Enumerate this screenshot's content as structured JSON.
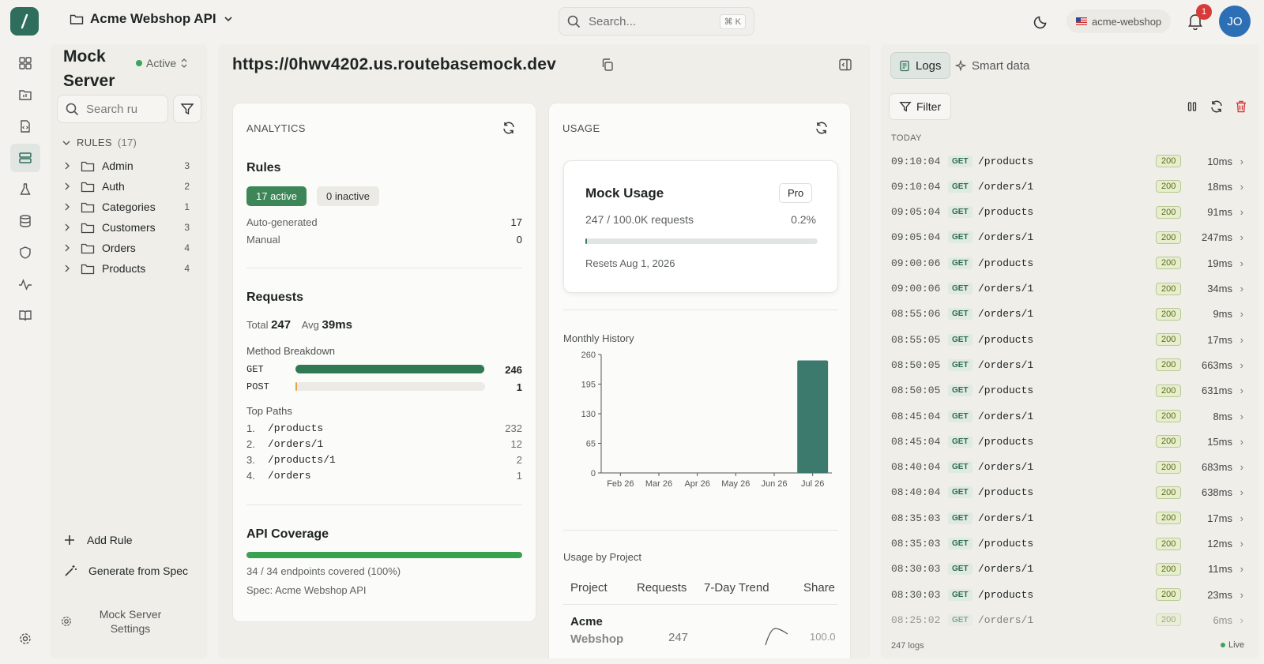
{
  "header": {
    "project": "Acme Webshop API",
    "search_placeholder": "Search...",
    "shortcut": "⌘ K",
    "env": "acme-webshop",
    "notifications": "1",
    "avatar": "JO"
  },
  "sidebar": {
    "title": "Mock Server",
    "status": "Active",
    "search_placeholder": "Search ru",
    "rules_label": "RULES",
    "rules_count": "(17)",
    "folders": [
      {
        "name": "Admin",
        "count": "3"
      },
      {
        "name": "Auth",
        "count": "2"
      },
      {
        "name": "Categories",
        "count": "1"
      },
      {
        "name": "Customers",
        "count": "3"
      },
      {
        "name": "Orders",
        "count": "4"
      },
      {
        "name": "Products",
        "count": "4"
      }
    ],
    "add_rule": "Add Rule",
    "generate": "Generate from Spec",
    "settings": "Mock Server Settings"
  },
  "main": {
    "url": "https://0hwv4202.us.routebasemock.dev",
    "analytics": {
      "heading": "ANALYTICS",
      "rules_title": "Rules",
      "active_badge": "17 active",
      "inactive_badge": "0 inactive",
      "auto_label": "Auto-generated",
      "auto_value": "17",
      "manual_label": "Manual",
      "manual_value": "0",
      "requests_title": "Requests",
      "total_label": "Total",
      "total_value": "247",
      "avg_label": "Avg",
      "avg_value": "39ms",
      "method_title": "Method Breakdown",
      "methods": [
        {
          "name": "GET",
          "value": "246",
          "fraction": 0.996
        },
        {
          "name": "POST",
          "value": "1",
          "fraction": 0.004
        }
      ],
      "top_paths_title": "Top Paths",
      "top_paths": [
        {
          "n": "1.",
          "path": "/products",
          "count": "232"
        },
        {
          "n": "2.",
          "path": "/orders/1",
          "count": "12"
        },
        {
          "n": "3.",
          "path": "/products/1",
          "count": "2"
        },
        {
          "n": "4.",
          "path": "/orders",
          "count": "1"
        }
      ],
      "coverage_title": "API Coverage",
      "coverage_fraction": 1.0,
      "coverage_text": "34 / 34 endpoints covered (100%)",
      "spec_text": "Spec: Acme Webshop API"
    },
    "usage": {
      "heading": "USAGE",
      "mock_usage_title": "Mock Usage",
      "plan": "Pro",
      "requests_text": "247 / 100.0K requests",
      "percent": "0.2%",
      "usage_fraction": 0.002,
      "resets": "Resets Aug 1, 2026",
      "monthly_title": "Monthly History",
      "by_project_title": "Usage by Project",
      "table_headers": [
        "Project",
        "Requests",
        "7-Day Trend",
        "Share"
      ],
      "row": {
        "project_line1": "Acme",
        "project_line2": "Webshop",
        "requests": "247",
        "share": "100.0"
      }
    }
  },
  "chart_data": {
    "type": "bar",
    "title": "Monthly History",
    "categories": [
      "Feb 26",
      "Mar 26",
      "Apr 26",
      "May 26",
      "Jun 26",
      "Jul 26"
    ],
    "values": [
      0,
      0,
      0,
      0,
      0,
      247
    ],
    "yticks": [
      "0",
      "65",
      "130",
      "195",
      "260"
    ],
    "ylim": [
      0,
      260
    ],
    "color": "#3c7a6e"
  },
  "logs": {
    "tab_logs": "Logs",
    "tab_smart": "Smart data",
    "filter": "Filter",
    "day": "TODAY",
    "rows": [
      {
        "time": "09:10:04",
        "method": "GET",
        "path": "/products",
        "status": "200",
        "dur": "10ms"
      },
      {
        "time": "09:10:04",
        "method": "GET",
        "path": "/orders/1",
        "status": "200",
        "dur": "18ms"
      },
      {
        "time": "09:05:04",
        "method": "GET",
        "path": "/products",
        "status": "200",
        "dur": "91ms"
      },
      {
        "time": "09:05:04",
        "method": "GET",
        "path": "/orders/1",
        "status": "200",
        "dur": "247ms"
      },
      {
        "time": "09:00:06",
        "method": "GET",
        "path": "/products",
        "status": "200",
        "dur": "19ms"
      },
      {
        "time": "09:00:06",
        "method": "GET",
        "path": "/orders/1",
        "status": "200",
        "dur": "34ms"
      },
      {
        "time": "08:55:06",
        "method": "GET",
        "path": "/orders/1",
        "status": "200",
        "dur": "9ms"
      },
      {
        "time": "08:55:05",
        "method": "GET",
        "path": "/products",
        "status": "200",
        "dur": "17ms"
      },
      {
        "time": "08:50:05",
        "method": "GET",
        "path": "/orders/1",
        "status": "200",
        "dur": "663ms"
      },
      {
        "time": "08:50:05",
        "method": "GET",
        "path": "/products",
        "status": "200",
        "dur": "631ms"
      },
      {
        "time": "08:45:04",
        "method": "GET",
        "path": "/orders/1",
        "status": "200",
        "dur": "8ms"
      },
      {
        "time": "08:45:04",
        "method": "GET",
        "path": "/products",
        "status": "200",
        "dur": "15ms"
      },
      {
        "time": "08:40:04",
        "method": "GET",
        "path": "/orders/1",
        "status": "200",
        "dur": "683ms"
      },
      {
        "time": "08:40:04",
        "method": "GET",
        "path": "/products",
        "status": "200",
        "dur": "638ms"
      },
      {
        "time": "08:35:03",
        "method": "GET",
        "path": "/orders/1",
        "status": "200",
        "dur": "17ms"
      },
      {
        "time": "08:35:03",
        "method": "GET",
        "path": "/products",
        "status": "200",
        "dur": "12ms"
      },
      {
        "time": "08:30:03",
        "method": "GET",
        "path": "/orders/1",
        "status": "200",
        "dur": "11ms"
      },
      {
        "time": "08:30:03",
        "method": "GET",
        "path": "/products",
        "status": "200",
        "dur": "23ms"
      },
      {
        "time": "08:25:02",
        "method": "GET",
        "path": "/orders/1",
        "status": "200",
        "dur": "6ms"
      }
    ],
    "count_text": "247 logs",
    "live_text": "Live"
  },
  "colors": {
    "accent": "#2f6e5c",
    "success": "#3d8657",
    "danger": "#d83a3a"
  }
}
